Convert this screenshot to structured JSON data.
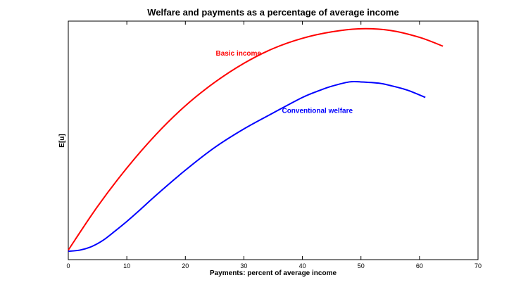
{
  "chart_data": {
    "type": "line",
    "title": "Welfare and payments as a percentage of average income",
    "xlabel": "Payments: percent of average income",
    "ylabel": "E[u]",
    "xlim": [
      0,
      70
    ],
    "ylim": [
      0,
      1
    ],
    "x_ticks": [
      "0",
      "10",
      "20",
      "30",
      "40",
      "50",
      "60",
      "70"
    ],
    "y_ticks_shown": false,
    "grid": false,
    "legend": "none",
    "series": [
      {
        "name": "Basic income",
        "color": "#ff0000",
        "x": [
          0,
          5,
          10,
          15,
          20,
          25,
          30,
          35,
          40,
          45,
          50,
          55,
          60,
          64
        ],
        "y": [
          0.04,
          0.223,
          0.384,
          0.525,
          0.645,
          0.743,
          0.823,
          0.885,
          0.928,
          0.955,
          0.968,
          0.961,
          0.932,
          0.895
        ]
      },
      {
        "name": "Conventional welfare",
        "color": "#0000ff",
        "x": [
          0,
          2,
          4,
          6,
          8,
          10,
          12,
          15,
          20,
          25,
          30,
          35,
          40,
          43,
          45,
          48,
          50,
          53,
          55,
          58,
          61
        ],
        "y": [
          0.035,
          0.04,
          0.055,
          0.082,
          0.12,
          0.16,
          0.203,
          0.27,
          0.375,
          0.47,
          0.548,
          0.615,
          0.68,
          0.71,
          0.727,
          0.745,
          0.745,
          0.74,
          0.73,
          0.71,
          0.68
        ]
      }
    ],
    "annotations": [
      {
        "text": "Basic income",
        "x": 25.2,
        "y": 0.855,
        "color": "#ff0000"
      },
      {
        "text": "Conventional welfare",
        "x": 36.5,
        "y": 0.615,
        "color": "#0000ff"
      }
    ]
  }
}
